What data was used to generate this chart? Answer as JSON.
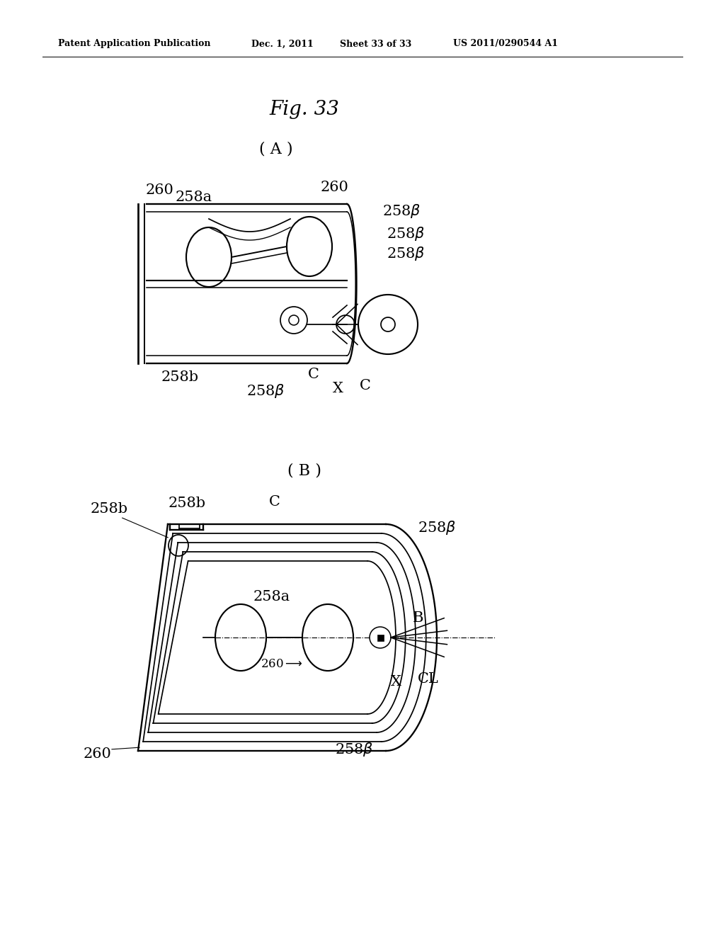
{
  "bg_color": "#ffffff",
  "header_text": "Patent Application Publication",
  "header_date": "Dec. 1, 2011",
  "header_sheet": "Sheet 33 of 33",
  "header_patent": "US 2011/0290544 A1",
  "fig_title": "Fig. 33",
  "sub_A": "( A )",
  "sub_B": "( B )",
  "label_fontsize": 15,
  "header_fontsize": 9,
  "title_fontsize": 20
}
